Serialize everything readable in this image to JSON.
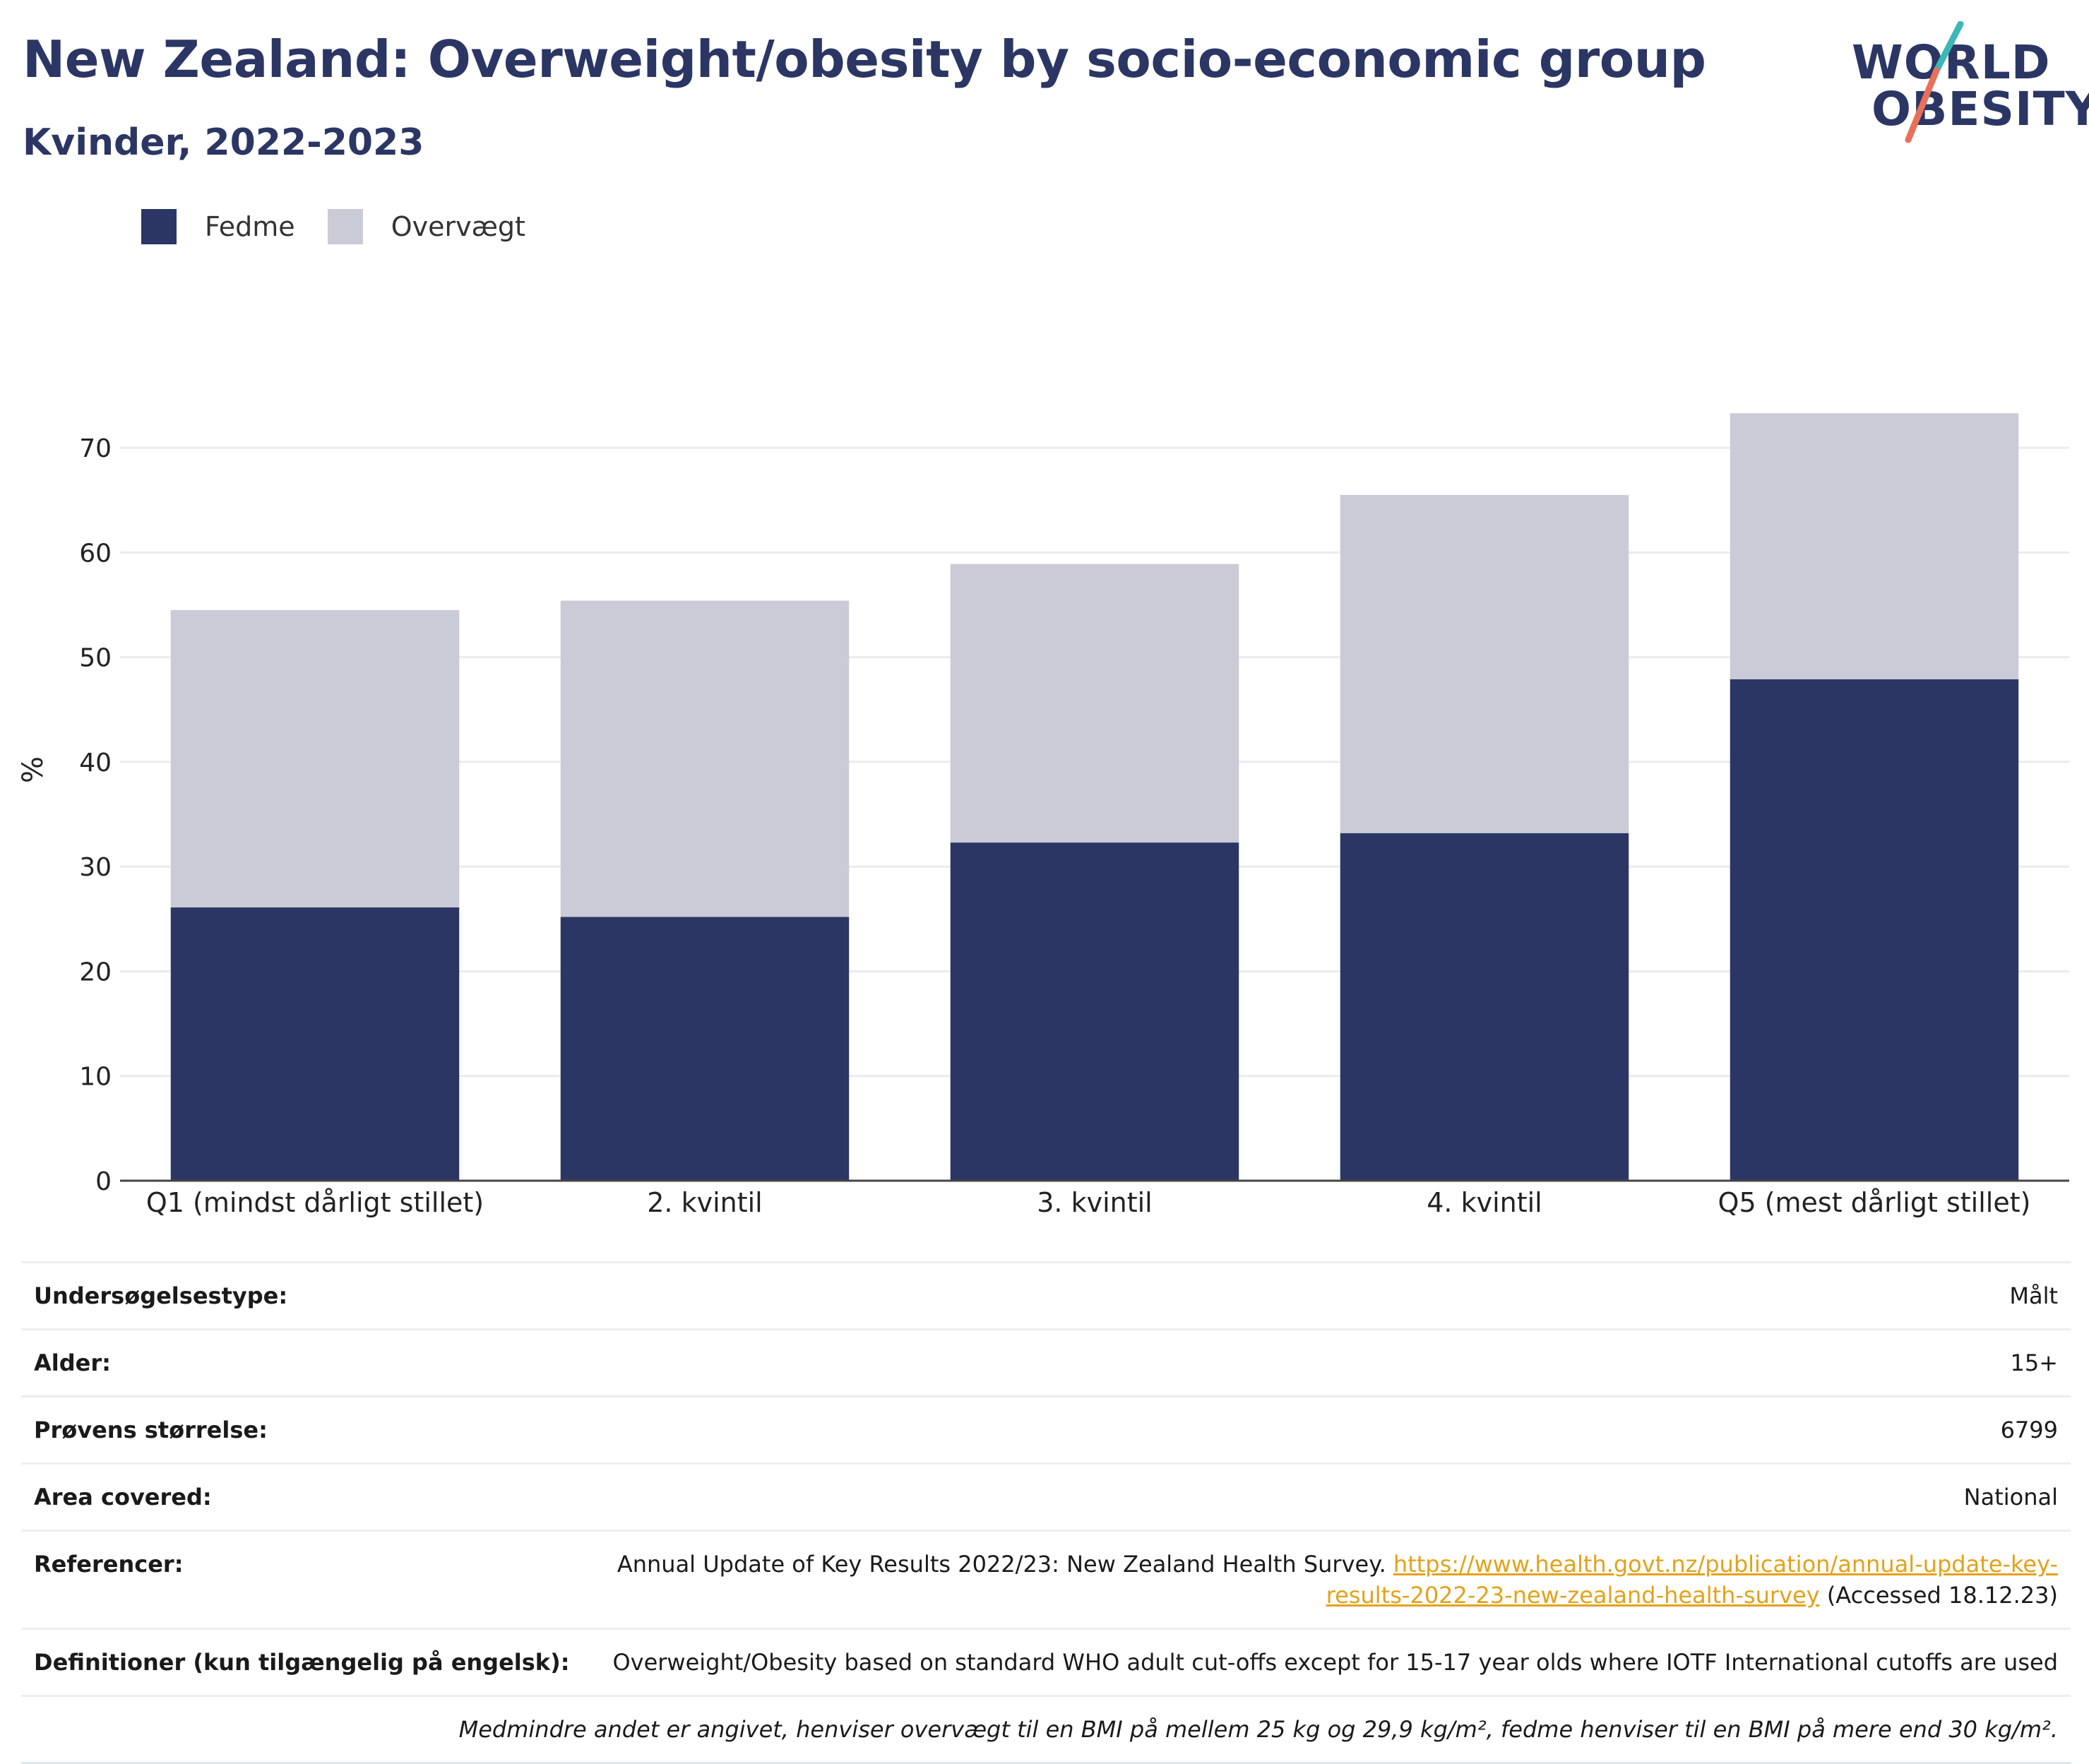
{
  "header": {
    "title": "New Zealand: Overweight/obesity by socio-economic group",
    "subtitle": "Kvinder, 2022-2023"
  },
  "logo": {
    "line1": "WORLD",
    "line2": "OBESITY"
  },
  "colors": {
    "fedme": "#2b3664",
    "overvaegt": "#cacbd6",
    "title": "#2b3664",
    "link": "#e3a21a",
    "logo_accent_teal": "#3bb7b7",
    "logo_accent_coral": "#e8705a"
  },
  "chart_data": {
    "type": "bar",
    "stacked": true,
    "title": "",
    "xlabel": "",
    "ylabel": "%",
    "ylim": [
      0,
      75
    ],
    "yticks": [
      0,
      10,
      20,
      30,
      40,
      50,
      60,
      70
    ],
    "grid": true,
    "legend_position": "top-left",
    "categories": [
      "Q1 (mindst dårligt stillet)",
      "2. kvintil",
      "3. kvintil",
      "4. kvintil",
      "Q5 (mest dårligt stillet)"
    ],
    "series": [
      {
        "name": "Fedme",
        "values": [
          26.1,
          25.2,
          32.3,
          33.2,
          47.9
        ]
      },
      {
        "name": "Overvægt",
        "values": [
          28.4,
          30.2,
          26.6,
          32.3,
          25.4
        ]
      }
    ]
  },
  "meta": {
    "rows": [
      {
        "key": "Undersøgelsestype:",
        "value": "Målt"
      },
      {
        "key": "Alder:",
        "value": "15+"
      },
      {
        "key": "Prøvens størrelse:",
        "value": "6799"
      },
      {
        "key": "Area covered:",
        "value": "National"
      },
      {
        "key": "Definitioner (kun tilgængelig på engelsk):",
        "value": "Overweight/Obesity based on standard WHO adult cut-offs except for 15-17 year olds where IOTF International cutoffs are used"
      }
    ],
    "reference": {
      "key": "Referencer:",
      "text": "Annual Update of Key Results 2022/23: New Zealand Health Survey.",
      "link": "https://www.health.govt.nz/publication/annual-update-key-results-2022-23-new-zealand-health-survey",
      "accessed": "(Accessed 18.12.23)"
    },
    "footnote": "Medmindre andet er angivet, henviser overvægt til en BMI på mellem 25 kg og 29,9 kg/m², fedme henviser til en BMI på mere end 30 kg/m²."
  }
}
